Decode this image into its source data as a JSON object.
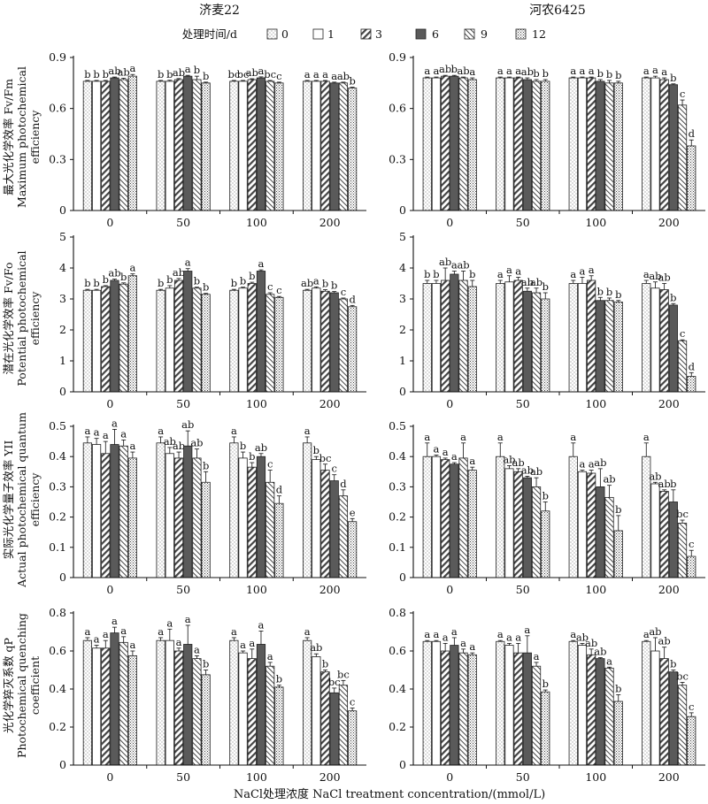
{
  "figure": {
    "legend_title": "处理时间/d",
    "legend_labels": [
      "0",
      "1",
      "3",
      "6",
      "9",
      "12"
    ],
    "series_fills": [
      "p-dots",
      "p-empty",
      "p-diag",
      "p-solid",
      "p-back",
      "p-cross"
    ],
    "xlabel": "NaCl处理浓度 NaCl treatment concentration/(mmol/L)",
    "cultivars": [
      "济麦22",
      "河农6425"
    ],
    "row_ylabels": [
      [
        "最大光化学效率 Fv/Fm",
        "Maximum photochemical",
        "efficiency"
      ],
      [
        "潜在光化学效率 Fv/Fo",
        "Potential photochemical",
        "efficiency"
      ],
      [
        "实际光化学量子效率 YII",
        "Actual photochemical quantum",
        "efficiency"
      ],
      [
        "光化学猝灭系数 qP",
        "Photochemical quenching",
        "coefficient"
      ]
    ]
  },
  "chart_data": [
    {
      "type": "bar",
      "row": 0,
      "col": 0,
      "title": "济麦22",
      "categories": [
        "0",
        "50",
        "100",
        "200"
      ],
      "ylim": [
        0,
        0.9
      ],
      "yticks": [
        "0",
        "0.3",
        "0.6",
        "0.9"
      ],
      "series_names": [
        "0",
        "1",
        "3",
        "6",
        "9",
        "12"
      ],
      "values": [
        [
          0.76,
          0.76,
          0.76,
          0.78,
          0.77,
          0.79
        ],
        [
          0.76,
          0.76,
          0.77,
          0.79,
          0.77,
          0.75
        ],
        [
          0.76,
          0.76,
          0.77,
          0.78,
          0.76,
          0.75
        ],
        [
          0.76,
          0.76,
          0.76,
          0.75,
          0.75,
          0.72
        ]
      ],
      "errors": [
        [
          0.005,
          0.005,
          0.005,
          0.005,
          0.008,
          0.01
        ],
        [
          0.005,
          0.006,
          0.006,
          0.005,
          0.02,
          0.005
        ],
        [
          0.005,
          0.005,
          0.005,
          0.006,
          0.005,
          0.005
        ],
        [
          0.005,
          0.005,
          0.005,
          0.005,
          0.005,
          0.005
        ]
      ],
      "labels": [
        [
          "b",
          "b",
          "b",
          "ab",
          "ab",
          "a"
        ],
        [
          "b",
          "b",
          "ab",
          "a",
          "b",
          "b"
        ],
        [
          "bc",
          "bc",
          "ab",
          "a",
          "bc",
          "c"
        ],
        [
          "a",
          "a",
          "a",
          "a",
          "ab",
          "b"
        ]
      ]
    },
    {
      "type": "bar",
      "row": 0,
      "col": 1,
      "title": "河农6425",
      "categories": [
        "0",
        "50",
        "100",
        "200"
      ],
      "ylim": [
        0,
        0.9
      ],
      "yticks": [
        "0",
        "0.3",
        "0.6",
        "0.9"
      ],
      "series_names": [
        "0",
        "1",
        "3",
        "6",
        "9",
        "12"
      ],
      "values": [
        [
          0.78,
          0.78,
          0.79,
          0.79,
          0.78,
          0.77
        ],
        [
          0.78,
          0.78,
          0.78,
          0.77,
          0.76,
          0.76
        ],
        [
          0.78,
          0.78,
          0.78,
          0.76,
          0.75,
          0.75
        ],
        [
          0.78,
          0.78,
          0.77,
          0.74,
          0.62,
          0.38
        ]
      ],
      "errors": [
        [
          0.005,
          0.005,
          0.005,
          0.005,
          0.005,
          0.01
        ],
        [
          0.005,
          0.005,
          0.005,
          0.01,
          0.01,
          0.01
        ],
        [
          0.005,
          0.005,
          0.005,
          0.01,
          0.015,
          0.01
        ],
        [
          0.005,
          0.01,
          0.01,
          0.005,
          0.03,
          0.035
        ]
      ],
      "labels": [
        [
          "a",
          "a",
          "ab",
          "b",
          "ab",
          "a"
        ],
        [
          "a",
          "a",
          "a",
          "ab",
          "b",
          "b"
        ],
        [
          "a",
          "a",
          "a",
          "b",
          "b",
          "b"
        ],
        [
          "a",
          "a",
          "a",
          "b",
          "c",
          "d"
        ]
      ]
    },
    {
      "type": "bar",
      "row": 1,
      "col": 0,
      "title": "",
      "categories": [
        "0",
        "50",
        "100",
        "200"
      ],
      "ylim": [
        0,
        5
      ],
      "yticks": [
        "0",
        "1",
        "2",
        "3",
        "4",
        "5"
      ],
      "series_names": [
        "0",
        "1",
        "3",
        "6",
        "9",
        "12"
      ],
      "values": [
        [
          3.28,
          3.28,
          3.4,
          3.6,
          3.48,
          3.75
        ],
        [
          3.28,
          3.35,
          3.6,
          3.9,
          3.35,
          3.15
        ],
        [
          3.28,
          3.35,
          3.5,
          3.9,
          3.15,
          3.05
        ],
        [
          3.28,
          3.35,
          3.25,
          3.2,
          3.0,
          2.75
        ]
      ],
      "errors": [
        [
          0.03,
          0.03,
          0.03,
          0.04,
          0.04,
          0.06
        ],
        [
          0.03,
          0.08,
          0.06,
          0.08,
          0.03,
          0.03
        ],
        [
          0.03,
          0.03,
          0.04,
          0.04,
          0.05,
          0.03
        ],
        [
          0.03,
          0.04,
          0.05,
          0.04,
          0.03,
          0.04
        ]
      ],
      "labels": [
        [
          "b",
          "b",
          "b",
          "ab",
          "b",
          "a"
        ],
        [
          "b",
          "b",
          "ab",
          "a",
          "b",
          "b"
        ],
        [
          "b",
          "b",
          "b",
          "a",
          "c",
          "c"
        ],
        [
          "ab",
          "a",
          "b",
          "b",
          "c",
          "d"
        ]
      ]
    },
    {
      "type": "bar",
      "row": 1,
      "col": 1,
      "title": "",
      "categories": [
        "0",
        "50",
        "100",
        "200"
      ],
      "ylim": [
        0,
        5
      ],
      "yticks": [
        "0",
        "1",
        "2",
        "3",
        "4",
        "5"
      ],
      "series_names": [
        "0",
        "1",
        "3",
        "6",
        "9",
        "12"
      ],
      "values": [
        [
          3.5,
          3.5,
          3.6,
          3.8,
          3.6,
          3.4
        ],
        [
          3.5,
          3.55,
          3.6,
          3.25,
          3.2,
          3.0
        ],
        [
          3.5,
          3.5,
          3.6,
          2.95,
          2.95,
          2.9
        ],
        [
          3.5,
          3.35,
          3.3,
          2.8,
          1.65,
          0.5
        ]
      ],
      "errors": [
        [
          0.1,
          0.1,
          0.4,
          0.1,
          0.3,
          0.2
        ],
        [
          0.1,
          0.2,
          0.1,
          0.1,
          0.15,
          0.2
        ],
        [
          0.1,
          0.2,
          0.15,
          0.1,
          0.08,
          0.05
        ],
        [
          0.1,
          0.2,
          0.2,
          0.05,
          0.03,
          0.12
        ]
      ],
      "labels": [
        [
          "b",
          "b",
          "ab",
          "a",
          "ab",
          "b"
        ],
        [
          "a",
          "a",
          "a",
          "ab",
          "ab",
          "b"
        ],
        [
          "a",
          "a",
          "a",
          "b",
          "b",
          "b"
        ],
        [
          "a",
          "ab",
          "ab",
          "b",
          "c",
          "d"
        ]
      ]
    },
    {
      "type": "bar",
      "row": 2,
      "col": 0,
      "title": "",
      "categories": [
        "0",
        "50",
        "100",
        "200"
      ],
      "ylim": [
        0,
        0.5
      ],
      "yticks": [
        "0",
        "0.1",
        "0.2",
        "0.3",
        "0.4",
        "0.5"
      ],
      "series_names": [
        "0",
        "1",
        "3",
        "6",
        "9",
        "12"
      ],
      "values": [
        [
          0.445,
          0.44,
          0.41,
          0.44,
          0.435,
          0.395
        ],
        [
          0.445,
          0.41,
          0.395,
          0.435,
          0.395,
          0.315
        ],
        [
          0.445,
          0.395,
          0.365,
          0.4,
          0.315,
          0.245
        ],
        [
          0.445,
          0.39,
          0.355,
          0.32,
          0.27,
          0.185
        ]
      ],
      "errors": [
        [
          0.02,
          0.02,
          0.04,
          0.05,
          0.02,
          0.02
        ],
        [
          0.02,
          0.02,
          0.02,
          0.05,
          0.03,
          0.035
        ],
        [
          0.02,
          0.02,
          0.015,
          0.01,
          0.04,
          0.025
        ],
        [
          0.02,
          0.01,
          0.02,
          0.02,
          0.02,
          0.01
        ]
      ],
      "labels": [
        [
          "a",
          "a",
          "a",
          "a",
          "a",
          "a"
        ],
        [
          "a",
          "ab",
          "ab",
          "ab",
          "ab",
          "b"
        ],
        [
          "a",
          "b",
          "b",
          "ab",
          "c",
          "d"
        ],
        [
          "a",
          "b",
          "bc",
          "c",
          "d",
          "e"
        ]
      ]
    },
    {
      "type": "bar",
      "row": 2,
      "col": 1,
      "title": "",
      "categories": [
        "0",
        "50",
        "100",
        "200"
      ],
      "ylim": [
        0,
        0.5
      ],
      "yticks": [
        "0",
        "0.1",
        "0.2",
        "0.3",
        "0.4",
        "0.5"
      ],
      "series_names": [
        "0",
        "1",
        "3",
        "6",
        "9",
        "12"
      ],
      "values": [
        [
          0.4,
          0.4,
          0.39,
          0.375,
          0.395,
          0.355
        ],
        [
          0.4,
          0.36,
          0.35,
          0.33,
          0.3,
          0.22
        ],
        [
          0.4,
          0.35,
          0.345,
          0.3,
          0.265,
          0.155
        ],
        [
          0.4,
          0.31,
          0.285,
          0.25,
          0.18,
          0.07
        ]
      ],
      "errors": [
        [
          0.045,
          0.005,
          0.005,
          0.005,
          0.05,
          0.01
        ],
        [
          0.045,
          0.01,
          0.01,
          0.005,
          0.03,
          0.03
        ],
        [
          0.045,
          0.005,
          0.01,
          0.06,
          0.04,
          0.05
        ],
        [
          0.045,
          0.005,
          0.005,
          0.04,
          0.01,
          0.02
        ]
      ],
      "labels": [
        [
          "a",
          "a",
          "a",
          "a",
          "a",
          "a"
        ],
        [
          "a",
          "ab",
          "ab",
          "ab",
          "ab",
          "b"
        ],
        [
          "a",
          "a",
          "a",
          "ab",
          "ab",
          "b"
        ],
        [
          "a",
          "ab",
          "ab",
          "b",
          "bc",
          "c"
        ]
      ]
    },
    {
      "type": "bar",
      "row": 3,
      "col": 0,
      "title": "",
      "categories": [
        "0",
        "50",
        "100",
        "200"
      ],
      "ylim": [
        0,
        0.8
      ],
      "yticks": [
        "0",
        "0.2",
        "0.4",
        "0.6",
        "0.8"
      ],
      "series_names": [
        "0",
        "1",
        "3",
        "6",
        "9",
        "12"
      ],
      "values": [
        [
          0.655,
          0.615,
          0.615,
          0.695,
          0.645,
          0.575
        ],
        [
          0.655,
          0.655,
          0.6,
          0.635,
          0.56,
          0.475
        ],
        [
          0.655,
          0.59,
          0.56,
          0.635,
          0.52,
          0.41
        ],
        [
          0.655,
          0.57,
          0.49,
          0.38,
          0.42,
          0.285
        ]
      ],
      "errors": [
        [
          0.015,
          0.015,
          0.04,
          0.03,
          0.03,
          0.025
        ],
        [
          0.015,
          0.06,
          0.015,
          0.1,
          0.015,
          0.025
        ],
        [
          0.015,
          0.01,
          0.05,
          0.07,
          0.02,
          0.01
        ],
        [
          0.015,
          0.015,
          0.01,
          0.025,
          0.025,
          0.015
        ]
      ],
      "labels": [
        [
          "a",
          "a",
          "a",
          "a",
          "a",
          "a"
        ],
        [
          "a",
          "a",
          "a",
          "a",
          "a",
          "b"
        ],
        [
          "a",
          "a",
          "a",
          "a",
          "a",
          "b"
        ],
        [
          "a",
          "ab",
          "b",
          "bc",
          "bc",
          "c"
        ]
      ]
    },
    {
      "type": "bar",
      "row": 3,
      "col": 1,
      "title": "",
      "categories": [
        "0",
        "50",
        "100",
        "200"
      ],
      "ylim": [
        0,
        0.8
      ],
      "yticks": [
        "0",
        "0.2",
        "0.4",
        "0.6",
        "0.8"
      ],
      "series_names": [
        "0",
        "1",
        "3",
        "6",
        "9",
        "12"
      ],
      "values": [
        [
          0.65,
          0.65,
          0.6,
          0.63,
          0.59,
          0.58
        ],
        [
          0.65,
          0.63,
          0.59,
          0.59,
          0.52,
          0.385
        ],
        [
          0.65,
          0.63,
          0.58,
          0.56,
          0.51,
          0.335
        ],
        [
          0.65,
          0.6,
          0.56,
          0.49,
          0.42,
          0.255
        ]
      ],
      "errors": [
        [
          0.005,
          0.005,
          0.04,
          0.04,
          0.02,
          0.01
        ],
        [
          0.005,
          0.01,
          0.05,
          0.09,
          0.02,
          0.01
        ],
        [
          0.005,
          0.01,
          0.03,
          0.005,
          0.005,
          0.035
        ],
        [
          0.005,
          0.07,
          0.06,
          0.01,
          0.015,
          0.02
        ]
      ],
      "labels": [
        [
          "a",
          "a",
          "a",
          "a",
          "a",
          "a"
        ],
        [
          "a",
          "a",
          "a",
          "a",
          "a",
          "b"
        ],
        [
          "a",
          "ab",
          "ab",
          "ab",
          "a",
          "b"
        ],
        [
          "a",
          "ab",
          "ab",
          "b",
          "bc",
          "c"
        ]
      ]
    }
  ]
}
